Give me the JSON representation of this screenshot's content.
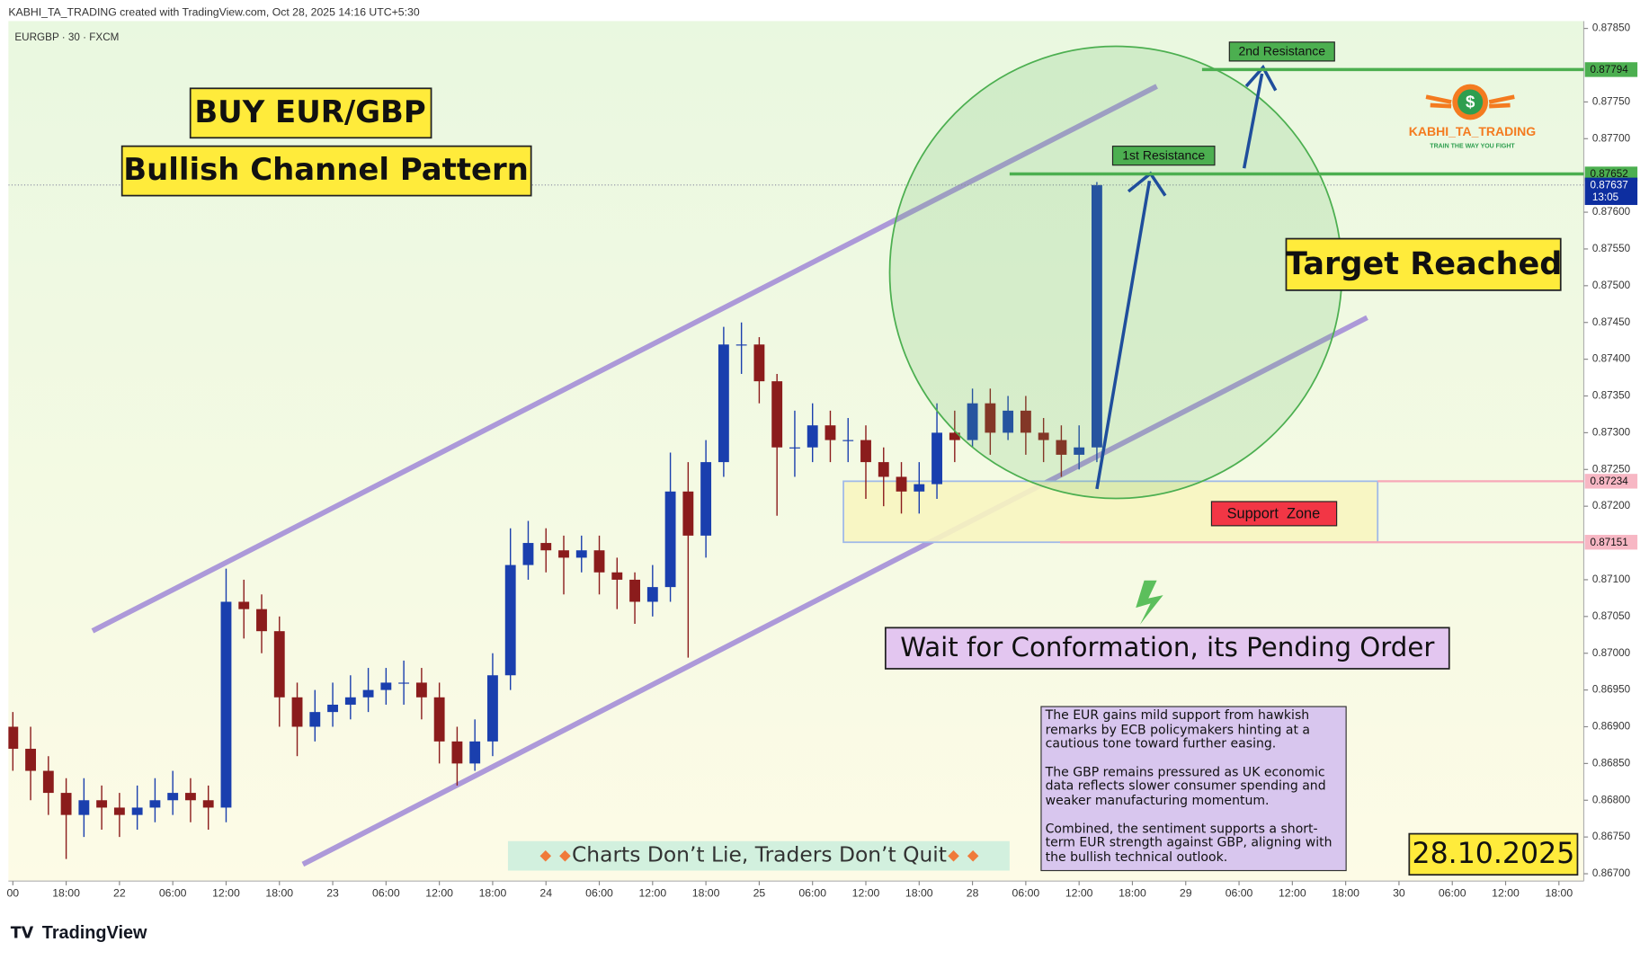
{
  "header": "KABHI_TA_TRADING created with TradingView.com, Oct 28, 2025 14:16 UTC+5:30",
  "symbol": "EURGBP · 30 · FXCM",
  "chart_data": {
    "type": "candlestick",
    "up_color": "#1a3fae",
    "down_color": "#8b1c1c",
    "x": [
      12,
      14,
      16,
      18,
      20,
      22,
      24,
      26,
      28,
      30,
      32,
      34,
      36,
      38,
      40,
      42,
      44,
      46,
      48,
      50,
      52,
      54,
      56,
      58,
      60,
      62,
      64,
      66,
      68,
      70,
      72,
      74,
      76,
      78,
      80,
      82,
      84,
      86,
      88,
      90,
      92,
      94,
      96,
      98,
      100,
      102,
      104,
      106,
      108,
      110,
      112,
      114,
      116,
      118,
      120,
      122,
      124,
      126,
      128,
      130,
      132,
      134
    ],
    "open": [
      0.869,
      0.8687,
      0.8684,
      0.8681,
      0.8678,
      0.868,
      0.8679,
      0.8678,
      0.8679,
      0.868,
      0.8681,
      0.868,
      0.8679,
      0.8707,
      0.8706,
      0.8703,
      0.8694,
      0.869,
      0.8692,
      0.8693,
      0.8694,
      0.8695,
      0.8696,
      0.8696,
      0.8694,
      0.8688,
      0.8685,
      0.8688,
      0.8697,
      0.8712,
      0.8715,
      0.8714,
      0.8713,
      0.8714,
      0.8711,
      0.871,
      0.8707,
      0.8709,
      0.8722,
      0.8716,
      0.8726,
      0.8742,
      0.8742,
      0.8737,
      0.8728,
      0.8728,
      0.8731,
      0.8729,
      0.8729,
      0.8726,
      0.8724,
      0.8722,
      0.8723,
      0.873,
      0.8729,
      0.8734,
      0.873,
      0.8733,
      0.873,
      0.8729,
      0.8727,
      0.8728
    ],
    "high": [
      0.8692,
      0.869,
      0.8686,
      0.8683,
      0.8683,
      0.8682,
      0.8681,
      0.8682,
      0.8683,
      0.8684,
      0.8683,
      0.8682,
      0.87115,
      0.871,
      0.8708,
      0.8705,
      0.8696,
      0.8695,
      0.8696,
      0.8697,
      0.8698,
      0.8698,
      0.8699,
      0.8698,
      0.8696,
      0.869,
      0.8691,
      0.87,
      0.8717,
      0.8718,
      0.8717,
      0.8716,
      0.8716,
      0.8716,
      0.8713,
      0.8711,
      0.8712,
      0.87273,
      0.8726,
      0.8729,
      0.87444,
      0.8745,
      0.8743,
      0.8738,
      0.8733,
      0.8734,
      0.8733,
      0.8732,
      0.8731,
      0.8728,
      0.8726,
      0.8726,
      0.8734,
      0.8733,
      0.8736,
      0.8736,
      0.8735,
      0.8735,
      0.8732,
      0.8731,
      0.8731,
      0.87641
    ],
    "low": [
      0.8684,
      0.868,
      0.8678,
      0.8672,
      0.8675,
      0.8676,
      0.8675,
      0.8676,
      0.8677,
      0.8678,
      0.8677,
      0.8676,
      0.8677,
      0.8702,
      0.87,
      0.869,
      0.8686,
      0.8688,
      0.869,
      0.8691,
      0.8692,
      0.8693,
      0.8693,
      0.8691,
      0.8685,
      0.8682,
      0.8684,
      0.8686,
      0.8695,
      0.871,
      0.8711,
      0.8708,
      0.8711,
      0.8708,
      0.8706,
      0.8704,
      0.8705,
      0.8707,
      0.86994,
      0.8713,
      0.8724,
      0.8738,
      0.8734,
      0.87187,
      0.8724,
      0.8726,
      0.8726,
      0.8726,
      0.8721,
      0.872,
      0.8719,
      0.8719,
      0.8721,
      0.8726,
      0.8728,
      0.8727,
      0.8729,
      0.8727,
      0.8726,
      0.8724,
      0.8725,
      0.8726
    ],
    "close": [
      0.8687,
      0.8684,
      0.8681,
      0.8678,
      0.868,
      0.8679,
      0.8678,
      0.8679,
      0.868,
      0.8681,
      0.868,
      0.8679,
      0.8707,
      0.8706,
      0.8703,
      0.8694,
      0.869,
      0.8692,
      0.8693,
      0.8694,
      0.8695,
      0.8696,
      0.8696,
      0.8694,
      0.8688,
      0.8685,
      0.8688,
      0.8697,
      0.8712,
      0.8715,
      0.8714,
      0.8713,
      0.8714,
      0.8711,
      0.871,
      0.8707,
      0.8709,
      0.8722,
      0.8716,
      0.8726,
      0.8742,
      0.8742,
      0.8737,
      0.8728,
      0.8728,
      0.8731,
      0.8729,
      0.8729,
      0.8726,
      0.8724,
      0.8722,
      0.8723,
      0.873,
      0.8729,
      0.8734,
      0.873,
      0.8733,
      0.873,
      0.8729,
      0.8727,
      0.8728,
      0.87637
    ],
    "xlim": [
      11.5,
      188.8
    ],
    "xticks": [
      {
        "value": 12,
        "label": "00"
      },
      {
        "value": 18,
        "label": "18:00"
      },
      {
        "value": 24,
        "label": "22"
      },
      {
        "value": 30,
        "label": "06:00"
      },
      {
        "value": 36,
        "label": "12:00"
      },
      {
        "value": 42,
        "label": "18:00"
      },
      {
        "value": 48,
        "label": "23"
      },
      {
        "value": 54,
        "label": "06:00"
      },
      {
        "value": 60,
        "label": "12:00"
      },
      {
        "value": 66,
        "label": "18:00"
      },
      {
        "value": 72,
        "label": "24"
      },
      {
        "value": 78,
        "label": "06:00"
      },
      {
        "value": 84,
        "label": "12:00"
      },
      {
        "value": 90,
        "label": "18:00"
      },
      {
        "value": 96,
        "label": "25"
      },
      {
        "value": 102,
        "label": "06:00"
      },
      {
        "value": 108,
        "label": "12:00"
      },
      {
        "value": 114,
        "label": "18:00"
      },
      {
        "value": 120,
        "label": "28"
      },
      {
        "value": 126,
        "label": "06:00"
      },
      {
        "value": 132,
        "label": "12:00"
      },
      {
        "value": 138,
        "label": "18:00"
      },
      {
        "value": 144,
        "label": "29"
      },
      {
        "value": 150,
        "label": "06:00"
      },
      {
        "value": 156,
        "label": "12:00"
      },
      {
        "value": 162,
        "label": "18:00"
      },
      {
        "value": 168,
        "label": "30"
      },
      {
        "value": 174,
        "label": "06:00"
      },
      {
        "value": 180,
        "label": "12:00"
      },
      {
        "value": 186,
        "label": "18:00"
      }
    ],
    "ylim": [
      0.8669,
      0.8786
    ],
    "yticks": [
      {
        "value": 0.867,
        "label": "0.86700"
      },
      {
        "value": 0.8675,
        "label": "0.86750"
      },
      {
        "value": 0.868,
        "label": "0.86800"
      },
      {
        "value": 0.8685,
        "label": "0.86850"
      },
      {
        "value": 0.869,
        "label": "0.86900"
      },
      {
        "value": 0.8695,
        "label": "0.86950"
      },
      {
        "value": 0.87,
        "label": "0.87000"
      },
      {
        "value": 0.8705,
        "label": "0.87050"
      },
      {
        "value": 0.871,
        "label": "0.87100"
      },
      {
        "value": 0.872,
        "label": "0.87200"
      },
      {
        "value": 0.8725,
        "label": "0.87250"
      },
      {
        "value": 0.873,
        "label": "0.87300"
      },
      {
        "value": 0.8735,
        "label": "0.87350"
      },
      {
        "value": 0.874,
        "label": "0.87400"
      },
      {
        "value": 0.8745,
        "label": "0.87450"
      },
      {
        "value": 0.875,
        "label": "0.87500"
      },
      {
        "value": 0.8755,
        "label": "0.87550"
      },
      {
        "value": 0.876,
        "label": "0.87600"
      },
      {
        "value": 0.877,
        "label": "0.87700"
      },
      {
        "value": 0.8775,
        "label": "0.87750"
      },
      {
        "value": 0.8785,
        "label": "0.87850"
      }
    ],
    "levels": [
      {
        "label": "2nd Resistance",
        "value": 0.87794,
        "color": "#4caf50"
      },
      {
        "label": "1st Resistance",
        "value": 0.87652,
        "color": "#4caf50"
      }
    ],
    "support_zone": {
      "label": "Support  Zone",
      "top": 0.87234,
      "bottom": 0.87151,
      "color": "#f7a8b8"
    },
    "last_price": 0.87637,
    "countdown": "13:05"
  },
  "annotations": {
    "title": "BUY EUR/GBP",
    "subtitle": "Bullish Channel Pattern",
    "target": "Target Reached",
    "wait": "Wait for Conformation, its Pending Order",
    "date": "28.10.2025",
    "motto": "Charts Don’t Lie, Traders Don’t Quit",
    "paragraphs": [
      "The EUR gains mild support from hawkish remarks by ECB policymakers hinting at a cautious tone toward further easing.",
      "The GBP remains pressured as UK economic data reflects slower consumer spending and weaker manufacturing momentum.",
      "Combined, the sentiment supports a short-term EUR strength against GBP, aligning with the bullish technical outlook."
    ]
  },
  "logo": {
    "symbol": "$",
    "name": "KABHI_TA_TRADING",
    "tagline": "TRAIN THE WAY YOU FIGHT"
  },
  "footer": "TradingView"
}
